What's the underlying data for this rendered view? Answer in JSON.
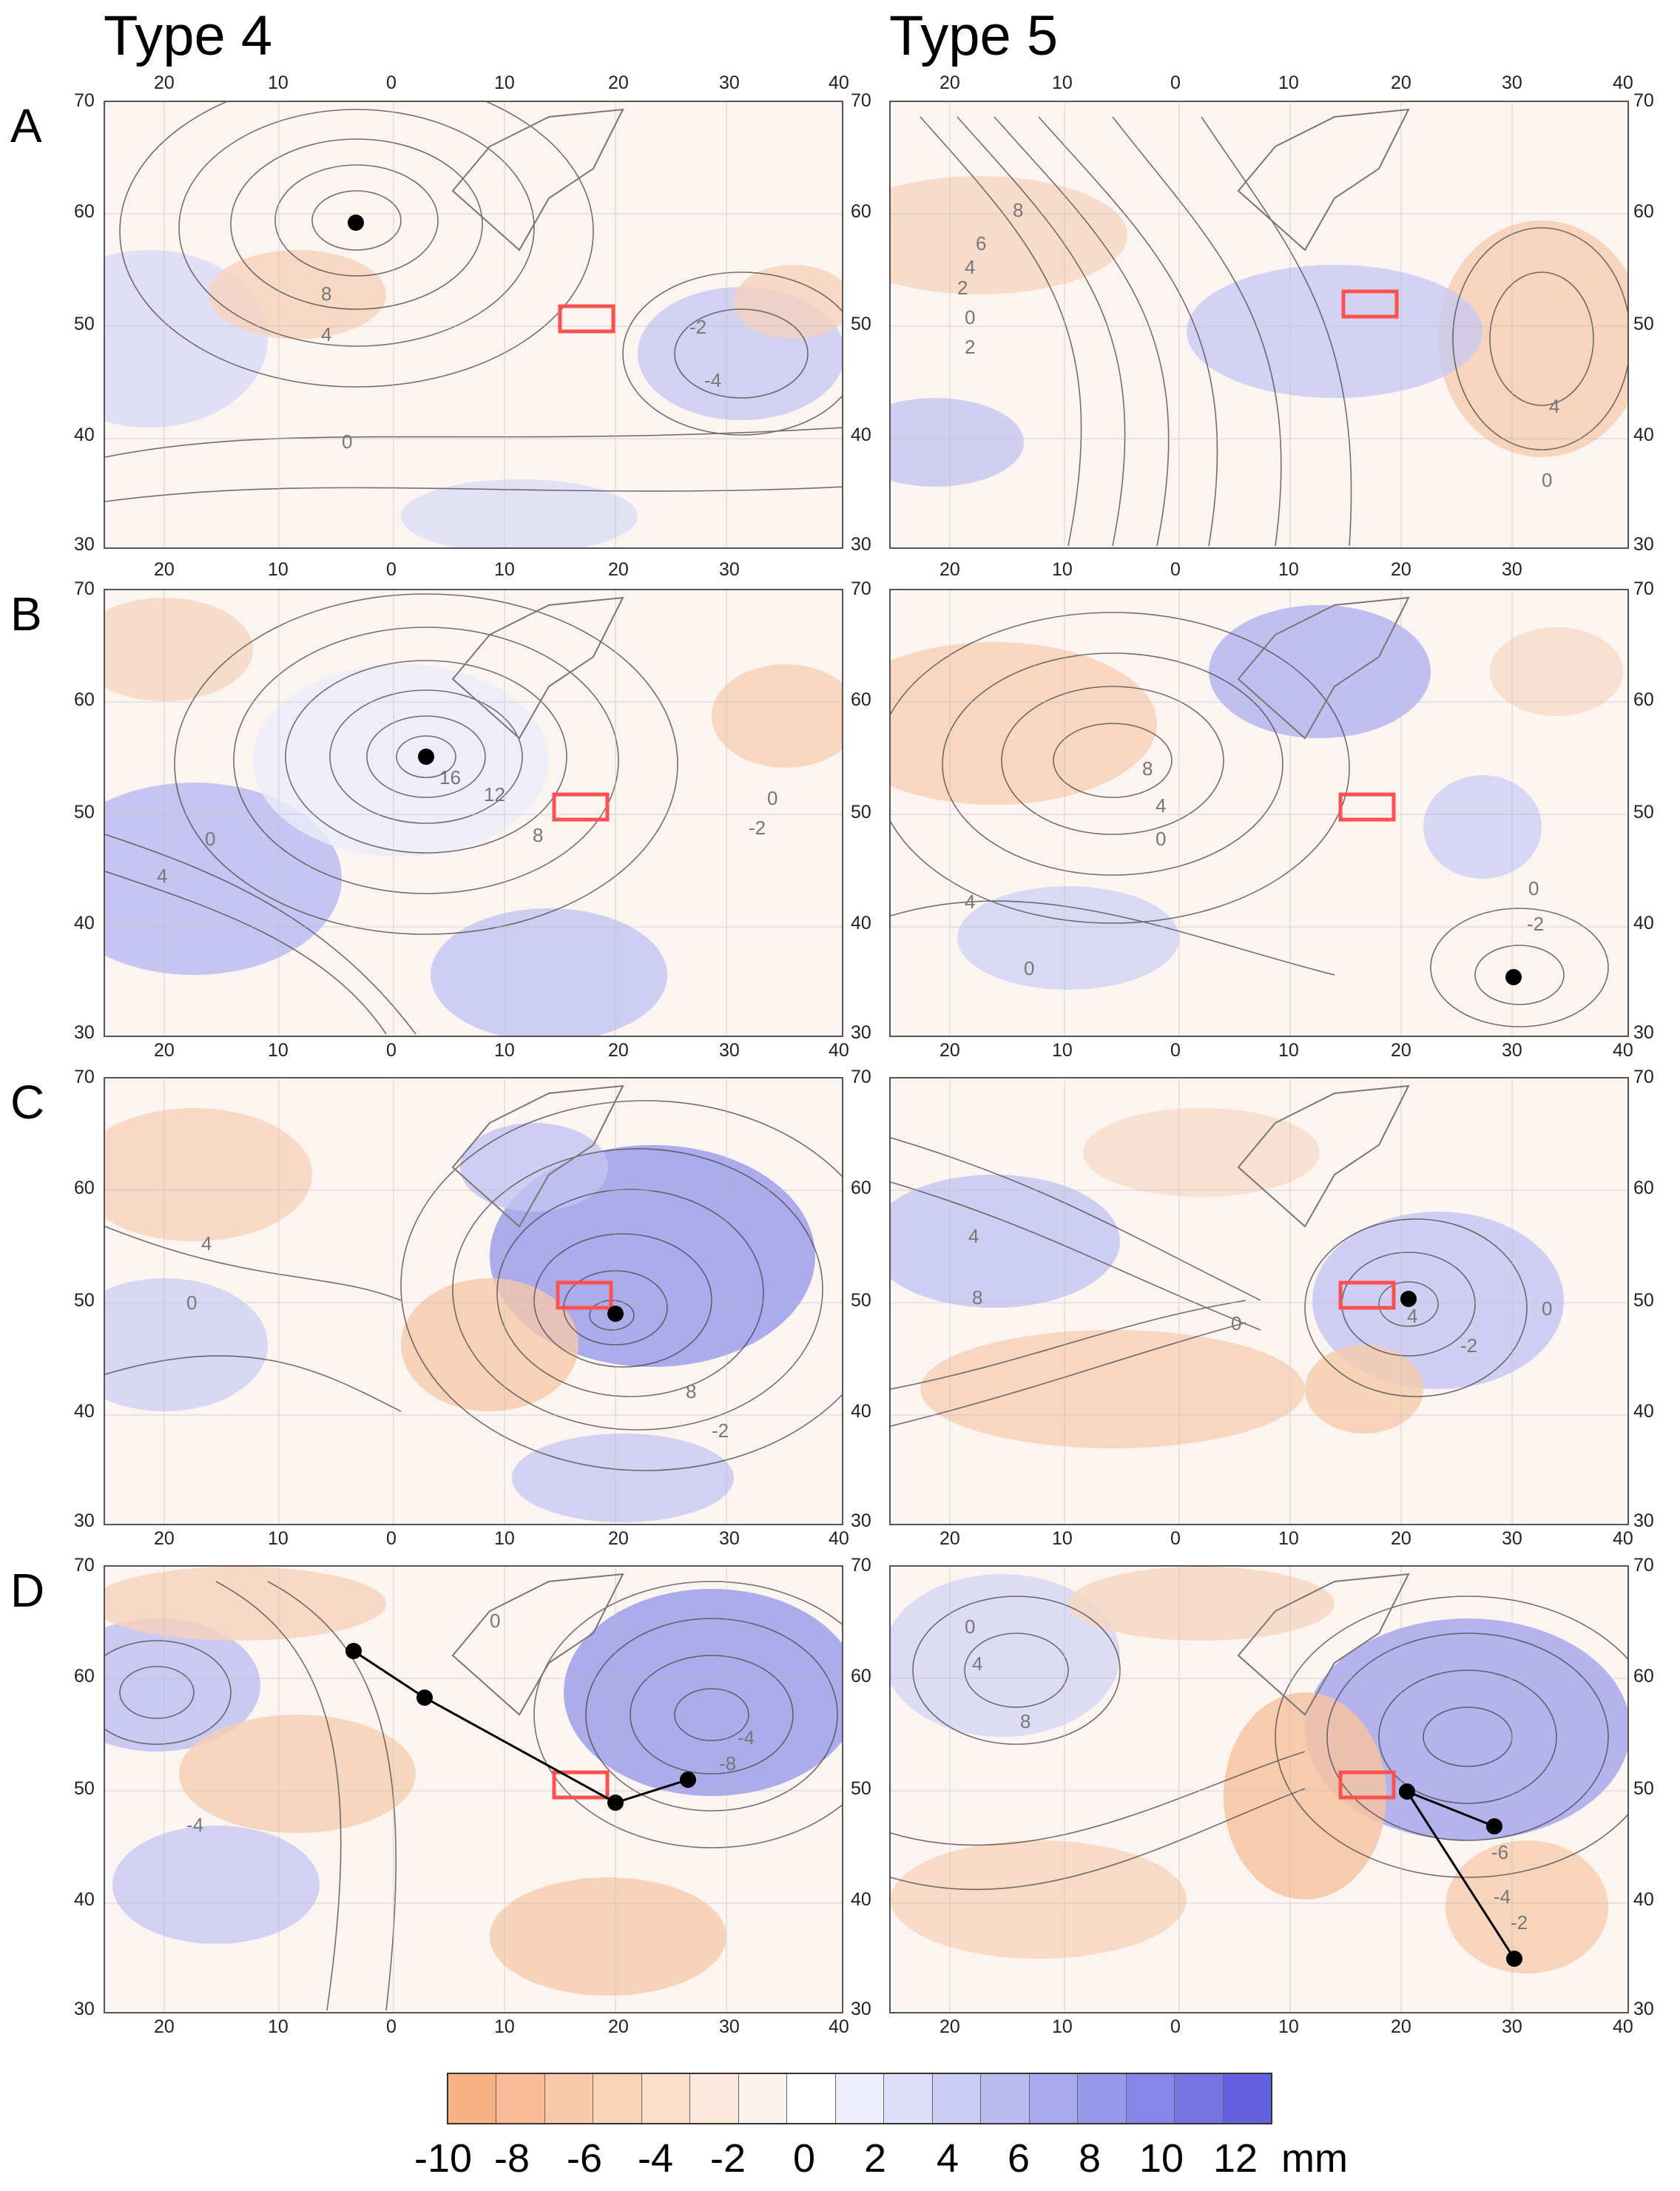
{
  "titles": [
    "Type 4",
    "Type 5"
  ],
  "row_labels": [
    "A",
    "B",
    "C",
    "D"
  ],
  "ticks": {
    "lon": [
      "20",
      "10",
      "0",
      "10",
      "20",
      "30",
      "40"
    ],
    "lat": [
      "70",
      "60",
      "50",
      "40",
      "30"
    ]
  },
  "colorbar": {
    "labels": [
      "-10",
      "-8",
      "-6",
      "-4",
      "-2",
      "0",
      "2",
      "4",
      "6",
      "8",
      "10",
      "12"
    ],
    "unit": "mm",
    "colors": [
      "#f7b184",
      "#f8bd97",
      "#f9c9a9",
      "#fad4b9",
      "#fbdfca",
      "#fde9dc",
      "#fef3ec",
      "#ffffff",
      "#eeeefc",
      "#dedef8",
      "#ccccf4",
      "#bbbbf1",
      "#a9a9ee",
      "#9898ea",
      "#8686e6",
      "#7474e2",
      "#6262de"
    ]
  },
  "panels": [
    {
      "id": "A-type4",
      "contour_labels": [
        "8",
        "4",
        "0",
        "-2",
        "-4"
      ]
    },
    {
      "id": "A-type5",
      "contour_labels": [
        "8",
        "6",
        "4",
        "2",
        "0",
        "2",
        "4",
        "0"
      ]
    },
    {
      "id": "B-type4",
      "contour_labels": [
        "16",
        "12",
        "8",
        "0",
        "4",
        "0",
        "-2"
      ]
    },
    {
      "id": "B-type5",
      "contour_labels": [
        "8",
        "4",
        "0",
        "4",
        "0",
        "0",
        "-2"
      ]
    },
    {
      "id": "C-type4",
      "contour_labels": [
        "4",
        "0",
        "8",
        "-2"
      ]
    },
    {
      "id": "C-type5",
      "contour_labels": [
        "4",
        "8",
        "0",
        "4",
        "-2",
        "0"
      ]
    },
    {
      "id": "D-type4",
      "contour_labels": [
        "0",
        "-4",
        "-8",
        "-4"
      ]
    },
    {
      "id": "D-type5",
      "contour_labels": [
        "0",
        "4",
        "8",
        "-6",
        "-4",
        "-2"
      ]
    }
  ]
}
